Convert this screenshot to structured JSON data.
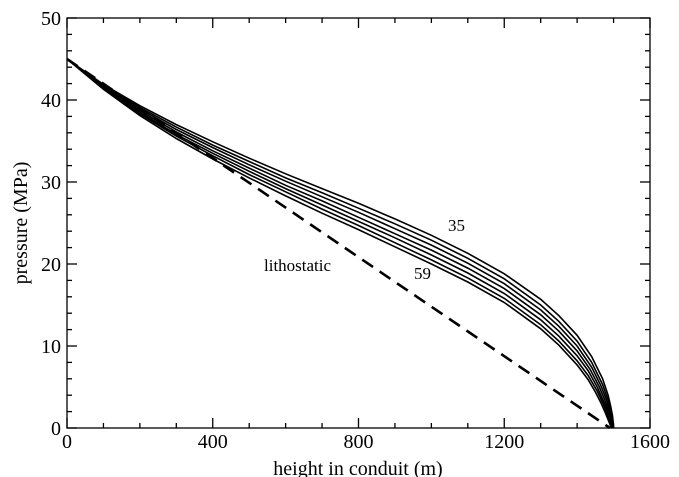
{
  "chart_data": {
    "type": "line",
    "title": "",
    "xlabel": "height in conduit (m)",
    "ylabel": "pressure (MPa)",
    "xlim": [
      0,
      1600
    ],
    "ylim": [
      0,
      50
    ],
    "xticks": [
      0,
      400,
      800,
      1200,
      1600
    ],
    "yticks": [
      0,
      10,
      20,
      30,
      40,
      50
    ],
    "x_tick_labels": [
      "0",
      "400",
      "800",
      "1200",
      "1600"
    ],
    "y_tick_labels": [
      "0",
      "10",
      "20",
      "30",
      "40",
      "50"
    ],
    "x_minor_step": 100,
    "y_minor_step": 2,
    "grid": false,
    "legend": "none",
    "colors": {
      "curves": "#000000",
      "axes": "#000000",
      "background": "#ffffff"
    },
    "annotations": {
      "lithostatic": "lithostatic",
      "top_curve": "35",
      "bottom_curve": "59"
    },
    "lithostatic": {
      "style": "dashed",
      "x": [
        0,
        1490
      ],
      "y": [
        45,
        0
      ]
    },
    "series": [
      {
        "x": [
          0,
          100,
          200,
          300,
          400,
          500,
          600,
          700,
          800,
          900,
          1000,
          1100,
          1200,
          1300,
          1350,
          1400,
          1440,
          1470,
          1485,
          1492,
          1497,
          1499,
          1500
        ],
        "y": [
          45,
          41.9,
          39.3,
          37.0,
          34.9,
          32.9,
          31.0,
          29.2,
          27.4,
          25.5,
          23.5,
          21.3,
          18.8,
          15.7,
          13.7,
          11.3,
          8.7,
          6.0,
          4.0,
          2.7,
          1.5,
          0.7,
          0
        ]
      },
      {
        "x": [
          0,
          100,
          200,
          300,
          400,
          500,
          600,
          700,
          800,
          900,
          1000,
          1100,
          1200,
          1300,
          1350,
          1400,
          1440,
          1470,
          1485,
          1492,
          1497,
          1499
        ],
        "y": [
          45,
          41.8,
          39.1,
          36.7,
          34.5,
          32.5,
          30.5,
          28.7,
          26.8,
          24.9,
          22.9,
          20.7,
          18.2,
          15.0,
          13.0,
          10.6,
          8.0,
          5.3,
          3.4,
          2.2,
          1.0,
          0
        ]
      },
      {
        "x": [
          0,
          100,
          200,
          300,
          400,
          500,
          600,
          700,
          800,
          900,
          1000,
          1100,
          1200,
          1300,
          1350,
          1400,
          1440,
          1465,
          1480,
          1490,
          1496,
          1498
        ],
        "y": [
          45,
          41.7,
          38.9,
          36.4,
          34.2,
          32.1,
          30.1,
          28.2,
          26.3,
          24.3,
          22.3,
          20.1,
          17.6,
          14.4,
          12.4,
          10.0,
          7.4,
          5.2,
          3.5,
          2.0,
          0.8,
          0
        ]
      },
      {
        "x": [
          0,
          100,
          200,
          300,
          400,
          500,
          600,
          700,
          800,
          900,
          1000,
          1100,
          1200,
          1300,
          1350,
          1400,
          1435,
          1460,
          1475,
          1487,
          1494,
          1497
        ],
        "y": [
          45,
          41.6,
          38.7,
          36.1,
          33.8,
          31.7,
          29.6,
          27.7,
          25.7,
          23.7,
          21.7,
          19.5,
          17.0,
          13.8,
          11.8,
          9.4,
          7.2,
          5.1,
          3.5,
          2.0,
          0.8,
          0
        ]
      },
      {
        "x": [
          0,
          100,
          200,
          300,
          400,
          500,
          600,
          700,
          800,
          900,
          1000,
          1100,
          1200,
          1300,
          1350,
          1400,
          1430,
          1455,
          1470,
          1484,
          1492,
          1496
        ],
        "y": [
          45,
          41.5,
          38.5,
          35.8,
          33.5,
          31.3,
          29.2,
          27.2,
          25.2,
          23.2,
          21.1,
          18.9,
          16.4,
          13.2,
          11.2,
          8.8,
          7.0,
          5.0,
          3.5,
          2.0,
          0.8,
          0
        ]
      },
      {
        "x": [
          0,
          100,
          200,
          300,
          400,
          500,
          600,
          700,
          800,
          900,
          1000,
          1100,
          1200,
          1300,
          1350,
          1400,
          1430,
          1455,
          1470,
          1482,
          1490,
          1495
        ],
        "y": [
          45,
          41.4,
          38.3,
          35.6,
          33.2,
          30.9,
          28.8,
          26.7,
          24.7,
          22.6,
          20.5,
          18.3,
          15.8,
          12.6,
          10.6,
          8.2,
          6.4,
          4.5,
          3.1,
          1.8,
          0.7,
          0
        ]
      },
      {
        "x": [
          0,
          100,
          200,
          300,
          400,
          500,
          600,
          700,
          800,
          900,
          1000,
          1100,
          1200,
          1300,
          1350,
          1400,
          1430,
          1450,
          1465,
          1478,
          1488,
          1494
        ],
        "y": [
          45,
          41.3,
          38.1,
          35.3,
          32.8,
          30.5,
          28.3,
          26.2,
          24.2,
          22.1,
          20.0,
          17.8,
          15.3,
          12.1,
          10.1,
          7.7,
          5.9,
          4.4,
          3.1,
          1.8,
          0.7,
          0
        ]
      }
    ]
  }
}
